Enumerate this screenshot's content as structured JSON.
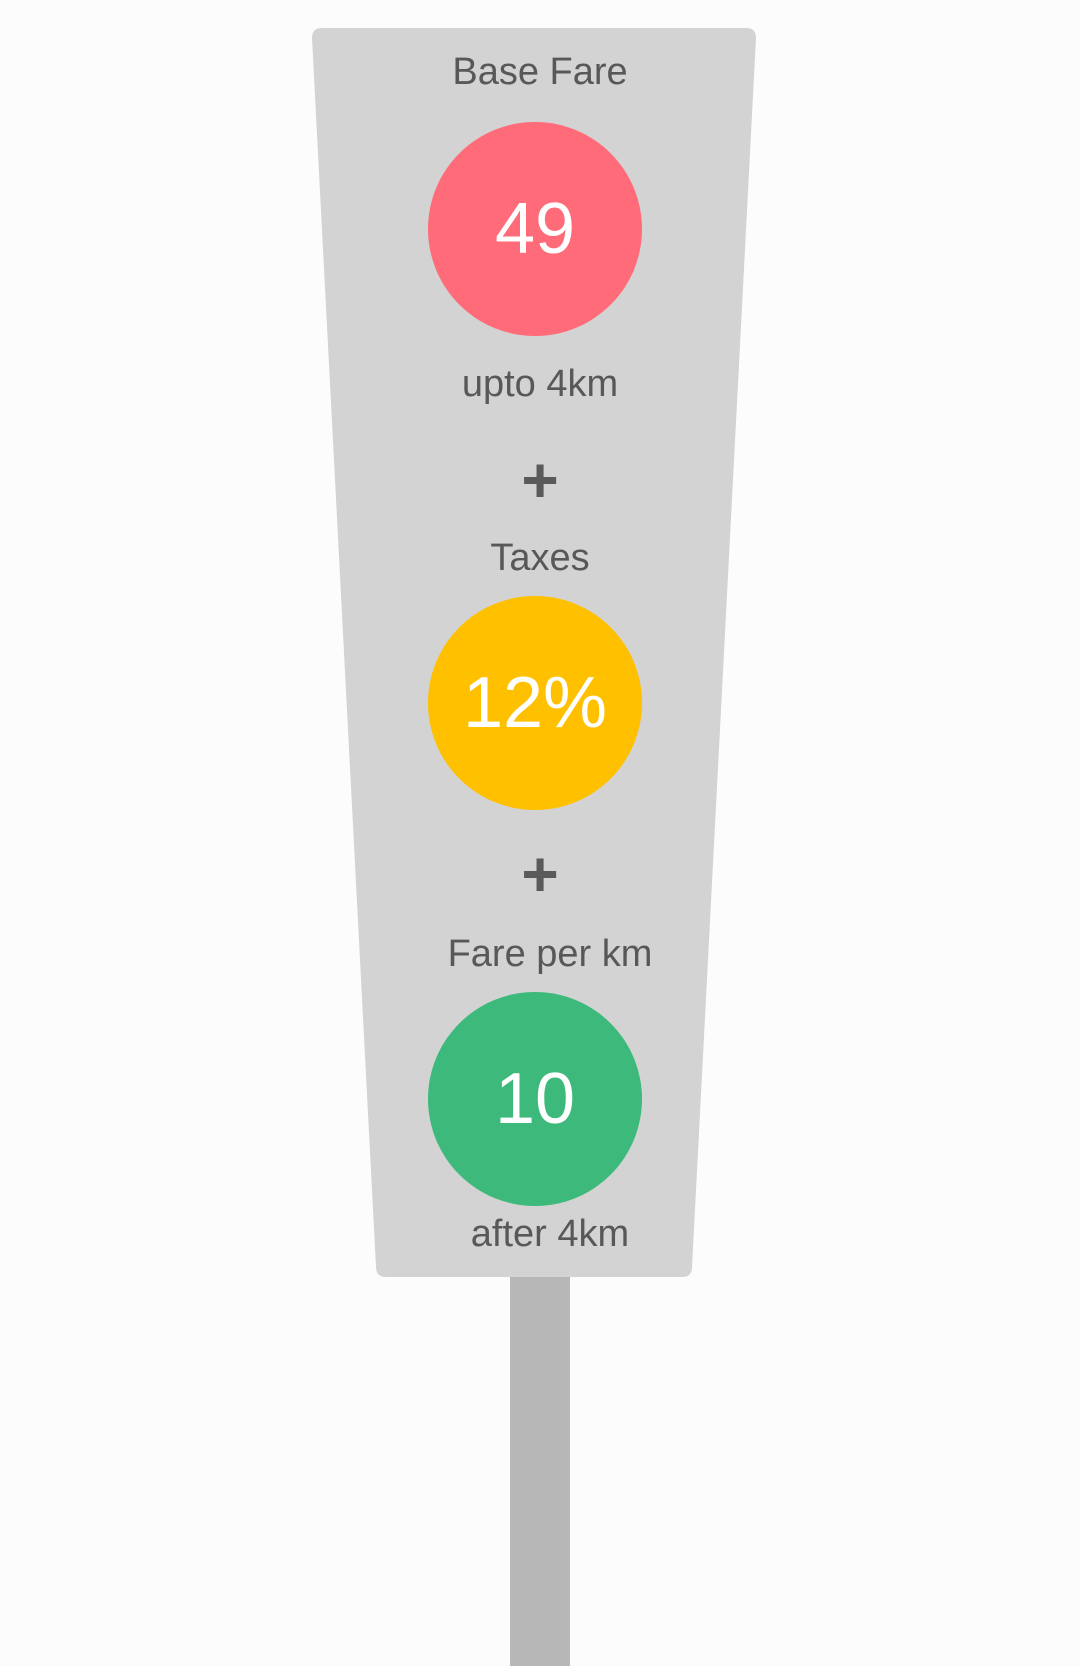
{
  "colors": {
    "background": "#fcfcfc",
    "sign_panel": "#d3d3d3",
    "pole": "#b7b7b7",
    "text": "#585858",
    "base_fare_circle": "#ff6b78",
    "taxes_circle": "#ffc000",
    "per_km_circle": "#3dba7b"
  },
  "base_fare": {
    "title": "Base Fare",
    "value": "49",
    "caption": "upto 4km"
  },
  "operator_1": "+",
  "taxes": {
    "title": "Taxes",
    "value": "12%"
  },
  "operator_2": "+",
  "per_km": {
    "title": "Fare per km",
    "value": "10",
    "caption": "after 4km"
  }
}
